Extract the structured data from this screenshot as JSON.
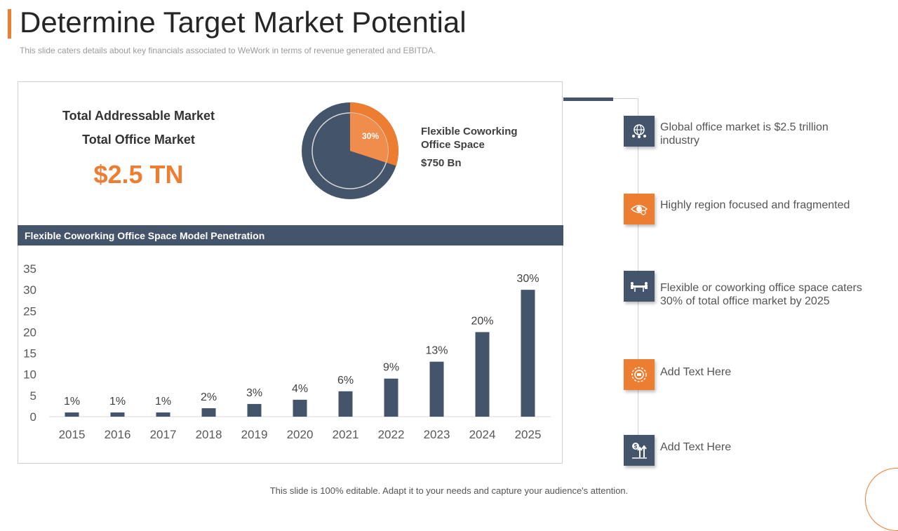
{
  "slide": {
    "title": "Determine Target Market Potential",
    "subtitle": "This slide caters details about key financials associated to WeWork in terms of revenue  generated  and EBITDA.",
    "footer": "This slide is 100% editable. Adapt it to your needs and capture your audience's attention."
  },
  "summary": {
    "tam_label": "Total Addressable Market",
    "tom_label": "Total Office Market",
    "tom_value": "$2.5 TN",
    "pie_percent_label": "30%",
    "pie_fraction": 0.3,
    "segment_line1": "Flexible Coworking",
    "segment_line2": "Office  Space",
    "segment_value": "$750 Bn"
  },
  "penetration_header": "Flexible Coworking Office Space Model Penetration",
  "chart_data": {
    "type": "bar",
    "categories": [
      "2015",
      "2016",
      "2017",
      "2018",
      "2019",
      "2020",
      "2021",
      "2022",
      "2023",
      "2024",
      "2025"
    ],
    "values": [
      1,
      1,
      1,
      2,
      3,
      4,
      6,
      9,
      13,
      20,
      30
    ],
    "data_labels": [
      "1%",
      "1%",
      "1%",
      "2%",
      "3%",
      "4%",
      "6%",
      "9%",
      "13%",
      "20%",
      "30%"
    ],
    "yticks": [
      0,
      5,
      10,
      15,
      20,
      25,
      30,
      35
    ],
    "ylim": [
      0,
      35
    ],
    "grid": false,
    "colors": {
      "bar": "#44546A"
    }
  },
  "features": [
    {
      "icon": "globe-people-icon",
      "text": "Global office market is $2.5 trillion industry"
    },
    {
      "icon": "eye-gear-icon",
      "text": "Highly region focused and fragmented"
    },
    {
      "icon": "meeting-table-icon",
      "text": "Flexible or coworking office space caters 30% of total office market by 2025"
    },
    {
      "icon": "gear-badge-icon",
      "text": "Add Text Here"
    },
    {
      "icon": "dollar-growth-icon",
      "text": "Add Text Here"
    }
  ],
  "colors": {
    "accent": "#ED7D31",
    "dark": "#44546A"
  }
}
